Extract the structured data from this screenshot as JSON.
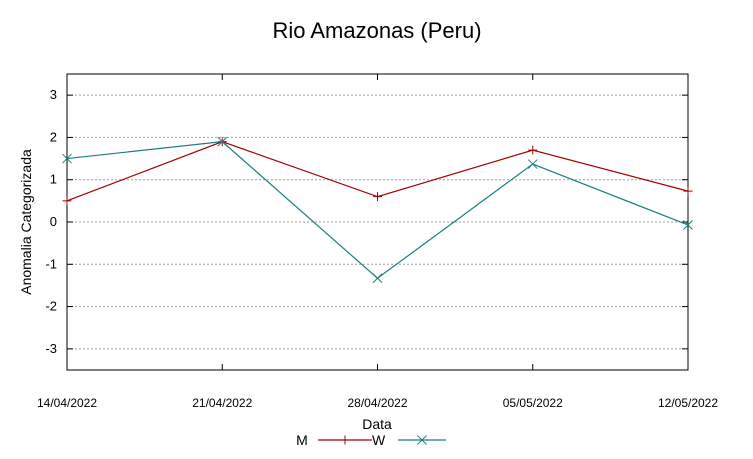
{
  "chart_data": {
    "type": "line",
    "title": "Rio Amazonas (Peru)",
    "xlabel": "Data",
    "ylabel": "Anomalia Categorizada",
    "categories": [
      "14/04/2022",
      "21/04/2022",
      "28/04/2022",
      "05/05/2022",
      "12/05/2022"
    ],
    "ylim": [
      -3.5,
      3.5
    ],
    "yticks": [
      -3,
      -2,
      -1,
      0,
      1,
      2,
      3
    ],
    "ytick_labels": [
      "-3",
      "-2",
      "-1",
      "0",
      "1",
      "2",
      "3"
    ],
    "grid": true,
    "legend": "bottom-center",
    "series": [
      {
        "name": "M",
        "color": "#a40000",
        "marker": "plus",
        "values": [
          0.5,
          1.9,
          0.6,
          1.7,
          0.73
        ]
      },
      {
        "name": "W",
        "color": "#1a7f7f",
        "marker": "cross",
        "values": [
          1.5,
          1.9,
          -1.33,
          1.37,
          -0.07
        ]
      }
    ]
  }
}
